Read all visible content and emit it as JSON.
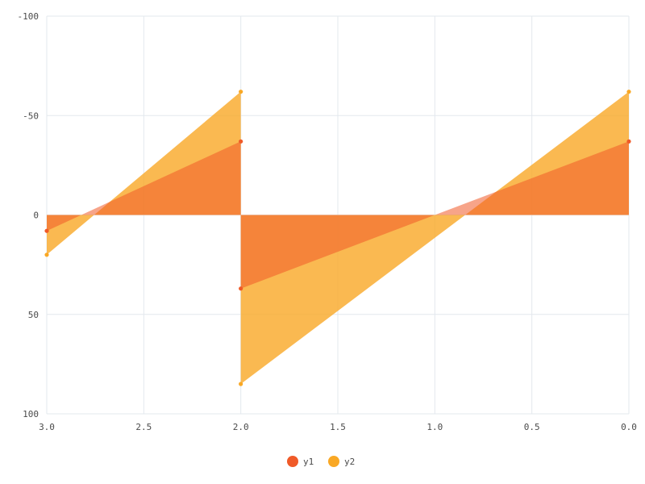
{
  "chart_data": {
    "type": "area",
    "title": "",
    "xlabel": "",
    "ylabel": "",
    "xlim": [
      3.0,
      0.0
    ],
    "ylim": [
      -100,
      100
    ],
    "x_reversed": true,
    "y_reversed": true,
    "x_ticks": [
      "3.0",
      "2.5",
      "2.0",
      "1.5",
      "1.0",
      "0.5",
      "0.0"
    ],
    "x_tick_values": [
      3.0,
      2.5,
      2.0,
      1.5,
      1.0,
      0.5,
      0.0
    ],
    "y_ticks": [
      "-100",
      "-50",
      "0",
      "50",
      "100"
    ],
    "y_tick_values": [
      -100,
      -50,
      0,
      50,
      100
    ],
    "grid": true,
    "legend_position": "bottom-center",
    "series": [
      {
        "name": "y1",
        "color": "#f05a28",
        "points": [
          [
            3.0,
            8
          ],
          [
            2.0,
            -37
          ],
          [
            2.0,
            37
          ],
          [
            0.0,
            -37
          ]
        ]
      },
      {
        "name": "y2",
        "color": "#f9a825",
        "points": [
          [
            3.0,
            20
          ],
          [
            2.0,
            -62
          ],
          [
            2.0,
            85
          ],
          [
            0.0,
            -62
          ]
        ]
      }
    ],
    "legend": [
      {
        "label": "y1",
        "color": "#f05a28"
      },
      {
        "label": "y2",
        "color": "#f9a825"
      }
    ]
  }
}
